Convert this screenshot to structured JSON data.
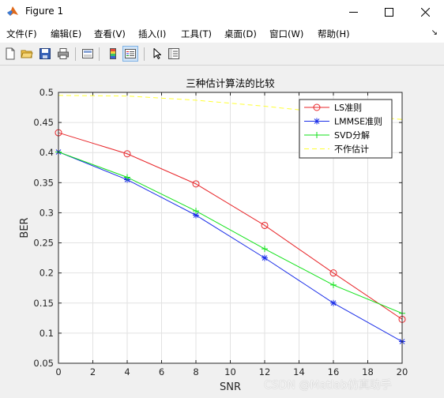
{
  "window": {
    "title": "Figure 1",
    "controls": {
      "minimize": "—",
      "maximize": "☐",
      "close": "✕"
    }
  },
  "menu": {
    "items": [
      "文件(F)",
      "编辑(E)",
      "查看(V)",
      "插入(I)",
      "工具(T)",
      "桌面(D)",
      "窗口(W)",
      "帮助(H)"
    ],
    "dock_glyph": "↘"
  },
  "toolbar": {
    "buttons": [
      "new-figure-icon",
      "open-file-icon",
      "save-icon",
      "print-icon",
      "link-plot-icon",
      "colorbar-icon",
      "legend-icon",
      "edit-plot-arrow-icon",
      "property-inspector-icon"
    ]
  },
  "colors": {
    "ls": "#e8262a",
    "lmmse": "#1a2ee8",
    "svd": "#12e21a",
    "no_est": "#ffff33",
    "grid": "#e2e2e2",
    "axes_bg": "#ffffff"
  },
  "chart_data": {
    "type": "line",
    "title": "三种估计算法的比较",
    "xlabel": "SNR",
    "ylabel": "BER",
    "xlim": [
      0,
      20
    ],
    "ylim": [
      0.05,
      0.5
    ],
    "xticks": [
      "0",
      "2",
      "4",
      "6",
      "8",
      "10",
      "12",
      "14",
      "16",
      "18",
      "20"
    ],
    "yticks": [
      "0.05",
      "0.1",
      "0.15",
      "0.2",
      "0.25",
      "0.3",
      "0.35",
      "0.4",
      "0.45",
      "0.5"
    ],
    "grid": true,
    "legend_position": "top-right",
    "x": [
      0,
      4,
      8,
      12,
      16,
      20
    ],
    "series": [
      {
        "name": "LS准则",
        "marker": "circle",
        "color_key": "ls",
        "values": [
          0.433,
          0.398,
          0.348,
          0.279,
          0.2,
          0.123
        ]
      },
      {
        "name": "LMMSE准则",
        "marker": "star",
        "color_key": "lmmse",
        "values": [
          0.401,
          0.355,
          0.296,
          0.225,
          0.15,
          0.086
        ]
      },
      {
        "name": "SVD分解",
        "marker": "plus",
        "color_key": "svd",
        "values": [
          0.401,
          0.359,
          0.303,
          0.24,
          0.18,
          0.133
        ]
      },
      {
        "name": "不作估计",
        "marker": "none",
        "dashed": true,
        "color_key": "no_est",
        "values": [
          0.495,
          0.494,
          0.487,
          0.477,
          0.465,
          0.455
        ]
      }
    ]
  },
  "watermark": "CSDN @Matlab仿真助手"
}
